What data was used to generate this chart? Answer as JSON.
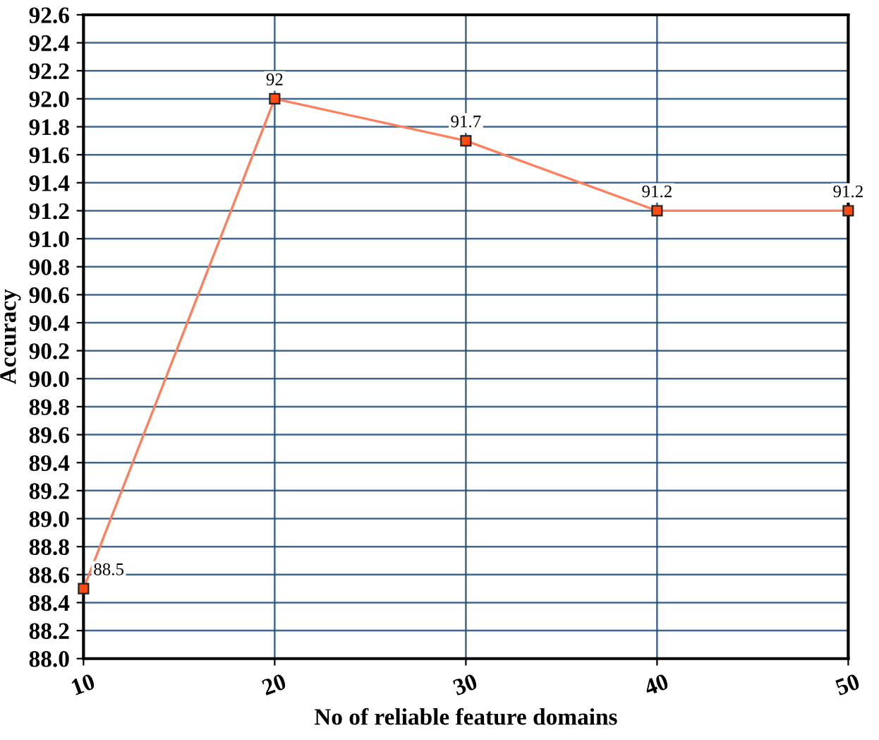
{
  "chart_data": {
    "type": "line",
    "xlabel": "No of reliable feature domains",
    "ylabel": "Accuracy",
    "x": [
      10,
      20,
      30,
      40,
      50
    ],
    "series": [
      {
        "color": "#ff7f5c",
        "values": [
          88.5,
          92,
          91.7,
          91.2,
          91.2
        ]
      }
    ],
    "xlim": [
      10,
      50
    ],
    "xticks": [
      10,
      20,
      30,
      40,
      50
    ],
    "ylim": [
      88.0,
      92.6
    ],
    "yticks": [
      {
        "value": 88.0,
        "label": "88.0"
      },
      {
        "value": 88.2,
        "label": "88.2"
      },
      {
        "value": 88.4,
        "label": "88.4"
      },
      {
        "value": 88.6,
        "label": "88.6"
      },
      {
        "value": 88.8,
        "label": "88.8"
      },
      {
        "value": 89.0,
        "label": "89.0"
      },
      {
        "value": 89.2,
        "label": "89.2"
      },
      {
        "value": 89.4,
        "label": "89.4"
      },
      {
        "value": 89.6,
        "label": "89.6"
      },
      {
        "value": 89.8,
        "label": "89.8"
      },
      {
        "value": 90.0,
        "label": "90.0"
      },
      {
        "value": 90.2,
        "label": "90.2"
      },
      {
        "value": 90.4,
        "label": "90.4"
      },
      {
        "value": 90.6,
        "label": "90.6"
      },
      {
        "value": 90.8,
        "label": "90.8"
      },
      {
        "value": 91.0,
        "label": "91.0"
      },
      {
        "value": 91.2,
        "label": "91.2"
      },
      {
        "value": 91.4,
        "label": "91.4"
      },
      {
        "value": 91.6,
        "label": "91.6"
      },
      {
        "value": 91.8,
        "label": "91.8"
      },
      {
        "value": 92.0,
        "label": "92.0"
      },
      {
        "value": 92.2,
        "label": "92.2"
      },
      {
        "value": 92.4,
        "label": "92.4"
      },
      {
        "value": 92.6,
        "label": "92.6"
      }
    ],
    "grid": true,
    "marker": "square",
    "line_style": "solid",
    "data_labels": true
  }
}
